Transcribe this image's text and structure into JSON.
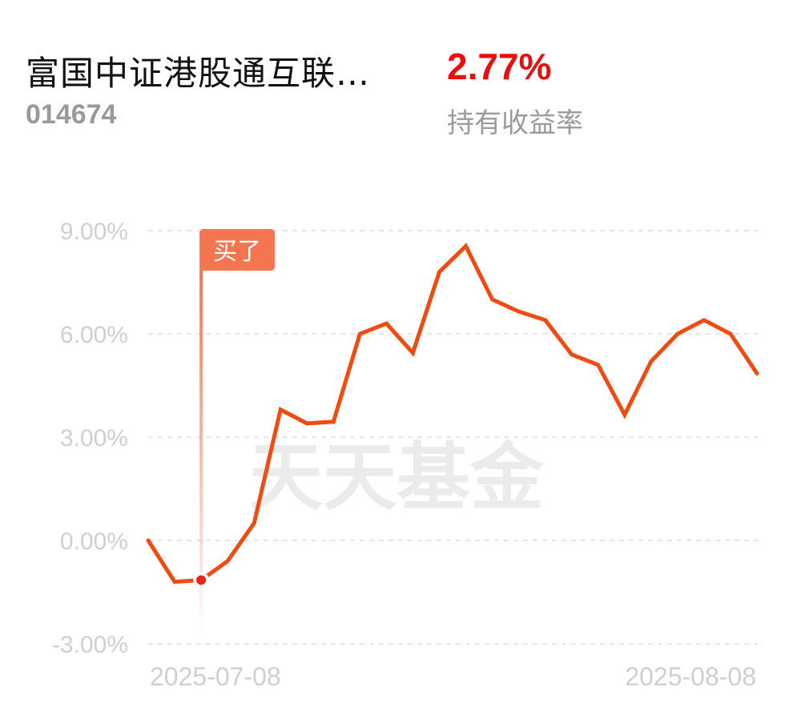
{
  "header": {
    "fund_name": "富国中证港股通互联…",
    "fund_code": "014674",
    "return_value": "2.77%",
    "return_label": "持有收益率"
  },
  "watermark": "天天基金",
  "colors": {
    "line": "#f24b12",
    "return_value": "#e8100f",
    "buy_marker": "#f37650",
    "grid": "#e6e6e6",
    "axis_text": "#cfcfcf"
  },
  "chart_data": {
    "type": "line",
    "x_labels": [
      "2025-07-08",
      "2025-08-08"
    ],
    "y_tick_labels": [
      "9.00%",
      "6.00%",
      "3.00%",
      "0.00%",
      "-3.00%"
    ],
    "y_ticks": [
      9,
      6,
      3,
      0,
      -3
    ],
    "ylim": [
      -3,
      9
    ],
    "grid": true,
    "series": [
      {
        "values": [
          0.0,
          -1.2,
          -1.15,
          -0.6,
          0.5,
          3.8,
          3.4,
          3.45,
          6.0,
          6.3,
          5.45,
          7.8,
          8.55,
          7.0,
          6.65,
          6.4,
          5.4,
          5.1,
          3.65,
          5.2,
          6.0,
          6.4,
          6.0,
          4.85
        ]
      }
    ],
    "buy_marker": {
      "label": "买了",
      "index": 2
    }
  }
}
